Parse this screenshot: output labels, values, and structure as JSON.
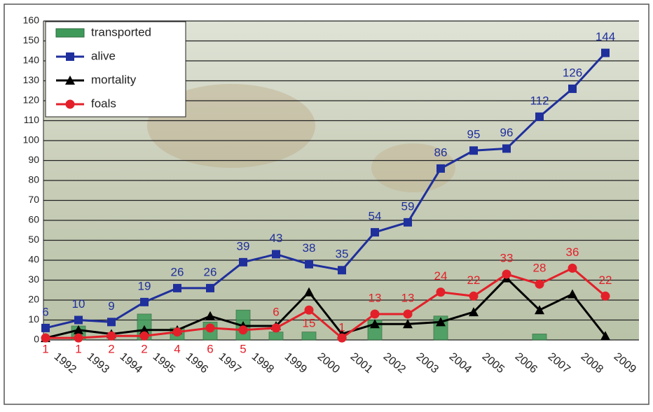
{
  "chart_data": {
    "type": "line",
    "categories": [
      "1992",
      "1993",
      "1994",
      "1995",
      "1996",
      "1997",
      "1998",
      "1999",
      "2000",
      "2001",
      "2002",
      "2003",
      "2004",
      "2005",
      "2006",
      "2007",
      "2008",
      "2009"
    ],
    "series": [
      {
        "name": "transported",
        "type": "bar",
        "color": "#3f9a5a",
        "values": [
          0,
          7,
          0,
          13,
          6,
          9,
          15,
          4,
          4,
          0,
          10,
          0,
          12,
          0,
          0,
          3,
          0,
          0
        ]
      },
      {
        "name": "alive",
        "color": "#1f2f9c",
        "marker": "square",
        "values": [
          6,
          10,
          9,
          19,
          26,
          26,
          39,
          43,
          38,
          35,
          54,
          59,
          86,
          95,
          96,
          112,
          126,
          144
        ]
      },
      {
        "name": "mortality",
        "color": "#000000",
        "marker": "triangle",
        "values": [
          1,
          5,
          3,
          5,
          5,
          12,
          7,
          7,
          24,
          3,
          8,
          8,
          9,
          14,
          31,
          15,
          23,
          2
        ]
      },
      {
        "name": "foals",
        "color": "#e3202a",
        "marker": "circle",
        "values": [
          1,
          1,
          2,
          2,
          4,
          6,
          5,
          6,
          15,
          1,
          13,
          13,
          24,
          22,
          33,
          28,
          36,
          22
        ]
      }
    ],
    "ylim": [
      0,
      160
    ],
    "yticks": [
      0,
      10,
      20,
      30,
      40,
      50,
      60,
      70,
      80,
      90,
      100,
      110,
      120,
      130,
      140,
      150,
      160
    ],
    "grid": true,
    "legend": "top-left"
  }
}
